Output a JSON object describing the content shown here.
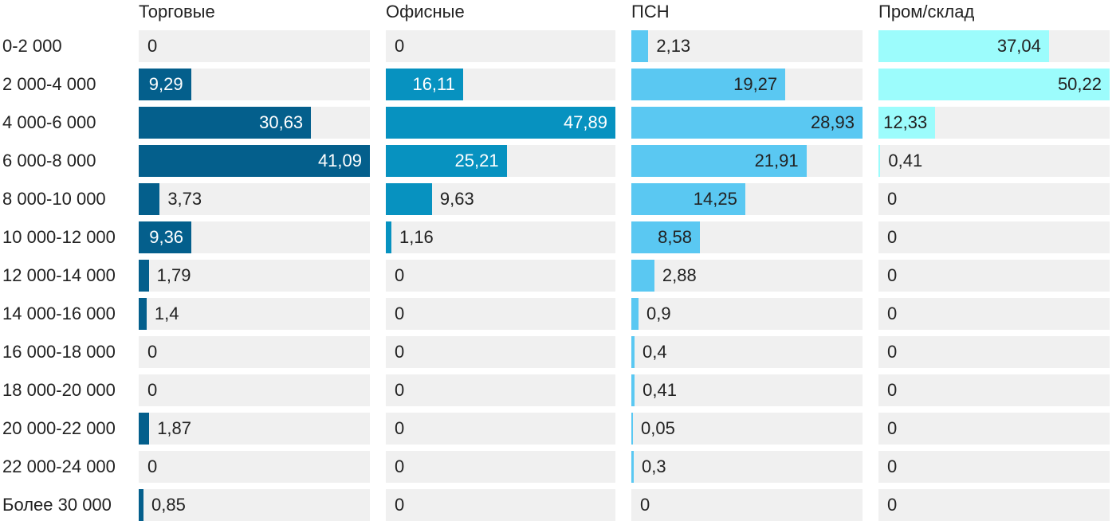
{
  "chart_data": {
    "type": "bar",
    "orientation": "horizontal",
    "small_multiples": true,
    "categories": [
      "0-2 000",
      "2 000-4 000",
      "4 000-6 000",
      "6 000-8 000",
      "8 000-10 000",
      "10 000-12 000",
      "12 000-14 000",
      "14 000-16 000",
      "16 000-18 000",
      "18 000-20 000",
      "20 000-22 000",
      "22 000-24 000",
      "Более 30 000"
    ],
    "labels": {
      "Торговые": [
        "0",
        "9,29",
        "30,63",
        "41,09",
        "3,73",
        "9,36",
        "1,79",
        "1,4",
        "0",
        "0",
        "1,87",
        "0",
        "0,85"
      ],
      "Офисные": [
        "0",
        "16,11",
        "47,89",
        "25,21",
        "9,63",
        "1,16",
        "0",
        "0",
        "0",
        "0",
        "0",
        "0",
        "0"
      ],
      "ПСН": [
        "2,13",
        "19,27",
        "28,93",
        "21,91",
        "14,25",
        "8,58",
        "2,88",
        "0,9",
        "0,4",
        "0,41",
        "0,05",
        "0,3",
        "0"
      ],
      "Пром/склад": [
        "37,04",
        "50,22",
        "12,33",
        "0,41",
        "0",
        "0",
        "0",
        "0",
        "0",
        "0",
        "0",
        "0",
        "0"
      ]
    },
    "series": [
      {
        "name": "Торговые",
        "color": "#045f8c",
        "text_inside": "#ffffff",
        "max": 41.09,
        "values": [
          0,
          9.29,
          30.63,
          41.09,
          3.73,
          9.36,
          1.79,
          1.4,
          0,
          0,
          1.87,
          0,
          0.85
        ]
      },
      {
        "name": "Офисные",
        "color": "#0792c0",
        "text_inside": "#ffffff",
        "max": 47.89,
        "values": [
          0,
          16.11,
          47.89,
          25.21,
          9.63,
          1.16,
          0,
          0,
          0,
          0,
          0,
          0,
          0
        ]
      },
      {
        "name": "ПСН",
        "color": "#5ac8f2",
        "text_inside": "#222222",
        "max": 28.93,
        "values": [
          2.13,
          19.27,
          28.93,
          21.91,
          14.25,
          8.58,
          2.88,
          0.9,
          0.4,
          0.41,
          0.05,
          0.3,
          0
        ]
      },
      {
        "name": "Пром/склад",
        "color": "#9cfcfc",
        "text_inside": "#222222",
        "max": 50.22,
        "values": [
          37.04,
          50.22,
          12.33,
          0.41,
          0,
          0,
          0,
          0,
          0,
          0,
          0,
          0,
          0
        ]
      }
    ],
    "cell_background": "#f0f0f0",
    "grid": false,
    "legend": "none"
  }
}
